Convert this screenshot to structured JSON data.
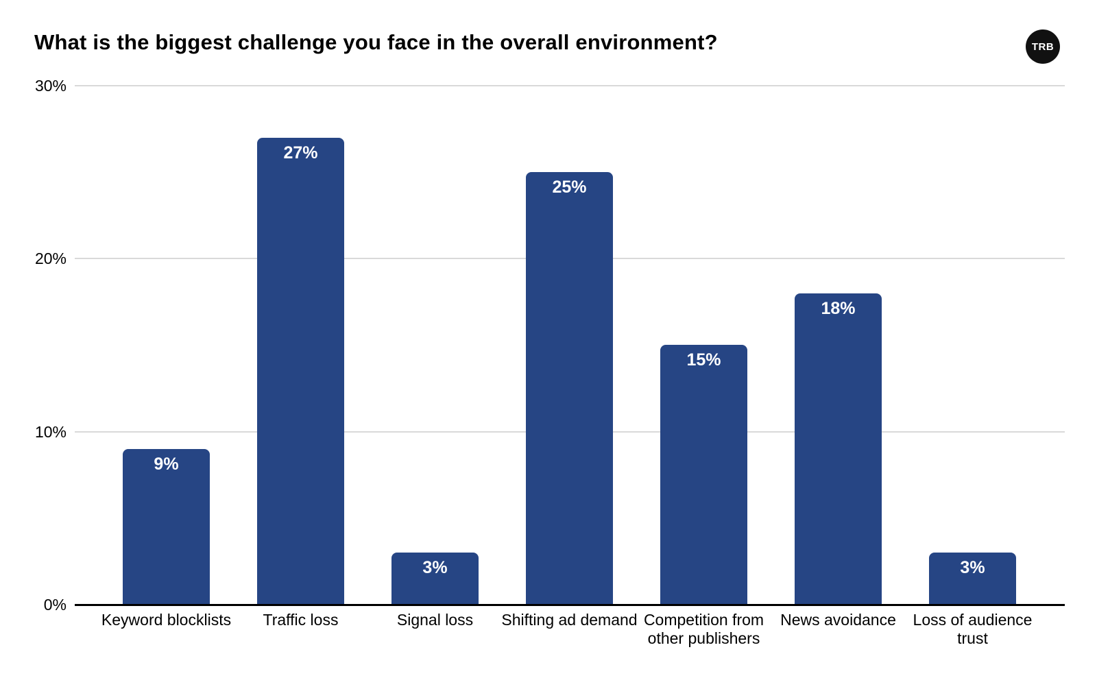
{
  "header": {
    "title": "What is the biggest challenge you face in the overall environment?",
    "logo_text": "TRB"
  },
  "chart_data": {
    "type": "bar",
    "title": "What is the biggest challenge you face in the overall environment?",
    "categories": [
      "Keyword blocklists",
      "Traffic loss",
      "Signal loss",
      "Shifting ad demand",
      "Competition from other publishers",
      "News avoidance",
      "Loss of audience trust"
    ],
    "values": [
      9,
      27,
      3,
      25,
      15,
      18,
      3
    ],
    "value_labels": [
      "9%",
      "27%",
      "3%",
      "25%",
      "15%",
      "18%",
      "3%"
    ],
    "xlabel": "",
    "ylabel": "",
    "ylim": [
      0,
      30
    ],
    "ytick_values": [
      0,
      10,
      20,
      30
    ],
    "ytick_labels": [
      "0%",
      "10%",
      "20%",
      "30%"
    ],
    "grid": true,
    "legend": "none",
    "colors": {
      "bar": "#264584",
      "value_label": "#ffffff",
      "gridline": "#d9d9d9",
      "axis": "#000000",
      "text": "#000000",
      "background": "#ffffff"
    }
  }
}
